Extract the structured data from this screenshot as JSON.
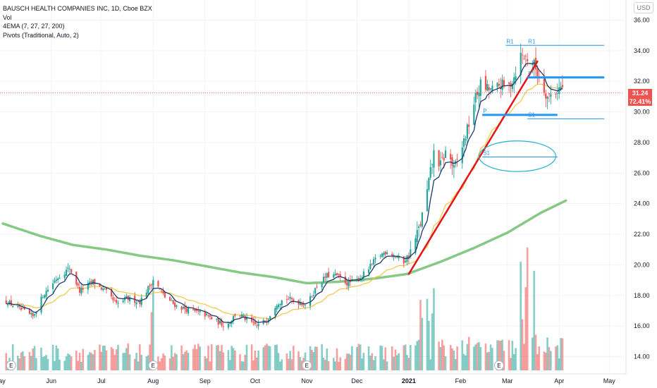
{
  "header": {
    "title": "BAUSCH HEALTH COMPANIES INC, 1D, Cboe BZX",
    "vol_label": "Vol",
    "ema_label": "4EMA (7, 27, 27, 200)",
    "pivots_label": "Pivots (Traditional, Auto, 2)",
    "currency": "USD"
  },
  "price_tags": {
    "last_price": "31.24",
    "change_pct": "72.41%"
  },
  "colors": {
    "up": "#26a69a",
    "down": "#ef5350",
    "ema_fast": "#1e3a6e",
    "ema_mid": "#f3c63f",
    "ema_slow": "#71c06f",
    "pivot": "#2196f3",
    "trendline": "#e3151a",
    "ellipse": "#22b5c9",
    "last_price_line": "#ef5350"
  },
  "chart_data": {
    "type": "candlestick",
    "y_ticks": [
      "36.00",
      "34.00",
      "32.00",
      "30.00",
      "28.00",
      "26.00",
      "24.00",
      "22.00",
      "20.00",
      "18.00",
      "16.00",
      "14.00"
    ],
    "ylim": [
      13.3,
      36.7
    ],
    "x_ticks": [
      {
        "label": "May",
        "day": -4
      },
      {
        "label": "Jun",
        "day": 27
      },
      {
        "label": "Jul",
        "day": 57
      },
      {
        "label": "Aug",
        "day": 88
      },
      {
        "label": "Sep",
        "day": 119
      },
      {
        "label": "Oct",
        "day": 149
      },
      {
        "label": "Nov",
        "day": 180
      },
      {
        "label": "Dec",
        "day": 210
      },
      {
        "label": "2021",
        "day": 241
      },
      {
        "label": "Feb",
        "day": 272
      },
      {
        "label": "Mar",
        "day": 300
      },
      {
        "label": "Apr",
        "day": 331
      },
      {
        "label": "May",
        "day": 361
      }
    ],
    "xlim": [
      -2,
      375
    ],
    "close_anchors": [
      [
        0,
        17.6
      ],
      [
        10,
        17.0
      ],
      [
        16,
        16.6
      ],
      [
        22,
        18.0
      ],
      [
        30,
        19.1
      ],
      [
        38,
        19.8
      ],
      [
        44,
        18.3
      ],
      [
        52,
        18.9
      ],
      [
        60,
        18.2
      ],
      [
        66,
        17.4
      ],
      [
        72,
        17.8
      ],
      [
        80,
        17.6
      ],
      [
        88,
        19.0
      ],
      [
        95,
        17.9
      ],
      [
        102,
        17.3
      ],
      [
        110,
        17.0
      ],
      [
        118,
        16.8
      ],
      [
        126,
        16.3
      ],
      [
        132,
        16.0
      ],
      [
        138,
        16.9
      ],
      [
        144,
        16.4
      ],
      [
        150,
        16.0
      ],
      [
        156,
        16.4
      ],
      [
        162,
        17.5
      ],
      [
        168,
        17.8
      ],
      [
        174,
        17.6
      ],
      [
        180,
        17.4
      ],
      [
        186,
        18.6
      ],
      [
        192,
        19.3
      ],
      [
        198,
        19.3
      ],
      [
        204,
        18.8
      ],
      [
        210,
        19.0
      ],
      [
        216,
        19.6
      ],
      [
        222,
        20.5
      ],
      [
        228,
        20.9
      ],
      [
        234,
        20.5
      ],
      [
        238,
        20.2
      ],
      [
        243,
        21.0
      ],
      [
        248,
        22.7
      ],
      [
        252,
        24.8
      ],
      [
        256,
        27.3
      ],
      [
        260,
        26.5
      ],
      [
        264,
        27.6
      ],
      [
        268,
        26.2
      ],
      [
        272,
        27.4
      ],
      [
        276,
        28.8
      ],
      [
        280,
        30.6
      ],
      [
        284,
        31.8
      ],
      [
        288,
        31.5
      ],
      [
        292,
        31.4
      ],
      [
        296,
        31.8
      ],
      [
        300,
        31.5
      ],
      [
        304,
        32.3
      ],
      [
        308,
        33.7
      ],
      [
        312,
        33.5
      ],
      [
        316,
        33.1
      ],
      [
        320,
        32.0
      ],
      [
        324,
        31.0
      ],
      [
        328,
        31.3
      ],
      [
        332,
        31.6
      ],
      [
        335,
        31.24
      ]
    ],
    "ema_slow_anchors": [
      [
        -2,
        22.7
      ],
      [
        20,
        21.9
      ],
      [
        40,
        21.3
      ],
      [
        60,
        21.0
      ],
      [
        80,
        20.6
      ],
      [
        100,
        20.3
      ],
      [
        120,
        19.9
      ],
      [
        140,
        19.5
      ],
      [
        160,
        19.2
      ],
      [
        180,
        18.8
      ],
      [
        200,
        18.9
      ],
      [
        220,
        19.1
      ],
      [
        240,
        19.4
      ],
      [
        260,
        20.2
      ],
      [
        280,
        21.1
      ],
      [
        300,
        22.1
      ],
      [
        320,
        23.4
      ],
      [
        335,
        24.2
      ]
    ],
    "volume_events": [
      {
        "day": 88,
        "mult": 1.9
      },
      {
        "day": 180,
        "mult": 1.6
      },
      {
        "day": 248,
        "mult": 1.5
      },
      {
        "day": 252,
        "mult": 2.2
      },
      {
        "day": 256,
        "mult": 1.6
      },
      {
        "day": 308,
        "mult": 2.0
      },
      {
        "day": 312,
        "mult": 2.4
      },
      {
        "day": 316,
        "mult": 1.8
      },
      {
        "day": 320,
        "mult": 1.7
      }
    ],
    "earnings_days": [
      3,
      88,
      180,
      295
    ],
    "earnings_label": "E",
    "pivots": [
      {
        "label": "R1",
        "price": 34.35,
        "from": 299,
        "to": 312,
        "thickness": "thin"
      },
      {
        "label": "R1",
        "price": 34.35,
        "from": 312,
        "to": 358,
        "thickness": "thin"
      },
      {
        "label": "P",
        "price": 32.25,
        "from": 312,
        "to": 358,
        "thickness": "thick"
      },
      {
        "label": "P",
        "price": 29.8,
        "from": 285,
        "to": 330,
        "thickness": "thick"
      },
      {
        "label": "S1",
        "price": 29.55,
        "from": 312,
        "to": 358,
        "thickness": "thin"
      },
      {
        "label": "S1",
        "price": 27.05,
        "from": 285,
        "to": 330,
        "thickness": "thin"
      }
    ],
    "trendline": {
      "from": [
        241,
        19.4
      ],
      "to": [
        318,
        33.3
      ]
    },
    "ellipse": {
      "center": [
        306,
        27.1
      ],
      "rx_days": 23,
      "ry_price": 1.0
    },
    "last_price": 31.24
  }
}
